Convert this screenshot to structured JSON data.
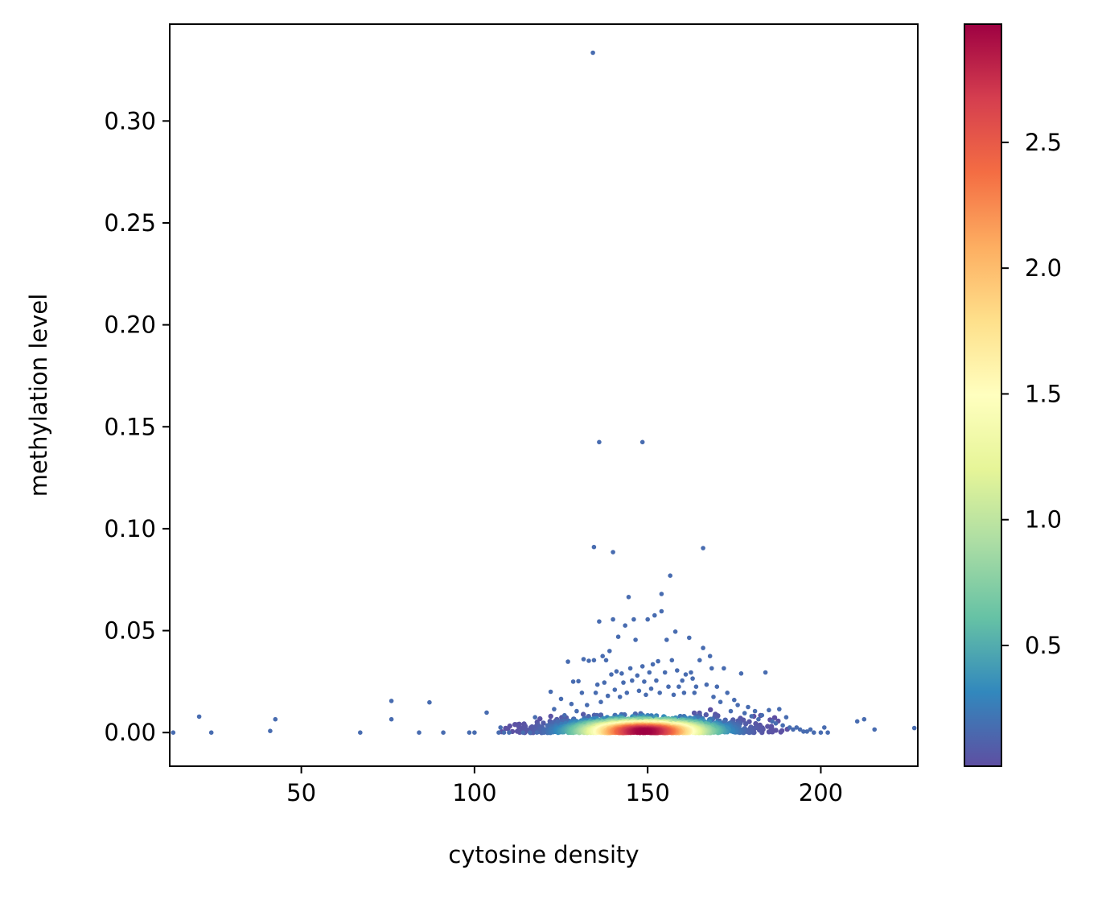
{
  "chart_data": {
    "type": "scatter",
    "title": "",
    "xlabel": "cytosine density",
    "ylabel": "methylation level",
    "xlim": [
      12,
      228
    ],
    "ylim": [
      -0.0165,
      0.3475
    ],
    "xticks": [
      50,
      100,
      150,
      200
    ],
    "xtick_labels": [
      "50",
      "100",
      "150",
      "200"
    ],
    "yticks": [
      0.0,
      0.05,
      0.1,
      0.15,
      0.2,
      0.25,
      0.3
    ],
    "ytick_labels": [
      "0.00",
      "0.05",
      "0.10",
      "0.15",
      "0.20",
      "0.25",
      "0.30"
    ],
    "grid": false,
    "colormap": "Spectral_r",
    "colormap_stops": [
      "#5e4fa2",
      "#3288bd",
      "#66c2a5",
      "#abdda4",
      "#e6f598",
      "#ffffbf",
      "#fee08b",
      "#fdae61",
      "#f46d43",
      "#d53e4f",
      "#9e0142"
    ],
    "colorbar": {
      "range": [
        0.02,
        2.97
      ],
      "ticks": [
        0.5,
        1.0,
        1.5,
        2.0,
        2.5
      ],
      "tick_labels": [
        "0.5",
        "1.0",
        "1.5",
        "2.0",
        "2.5"
      ],
      "placement": "right"
    },
    "density_core": {
      "note_color_value": "density",
      "center": [
        149,
        0.0005
      ],
      "spread": [
        9,
        0.0035
      ]
    },
    "points": [
      [
        13,
        0.0,
        0.05
      ],
      [
        20.5,
        0.0078,
        0.05
      ],
      [
        24,
        0.0,
        0.05
      ],
      [
        41,
        0.0008,
        0.05
      ],
      [
        42.5,
        0.0065,
        0.05
      ],
      [
        67,
        0.0,
        0.05
      ],
      [
        76,
        0.0155,
        0.05
      ],
      [
        76,
        0.0065,
        0.05
      ],
      [
        84,
        0.0,
        0.05
      ],
      [
        87,
        0.0148,
        0.05
      ],
      [
        91,
        0.0,
        0.05
      ],
      [
        98.5,
        0.0,
        0.05
      ],
      [
        100,
        0.0,
        0.05
      ],
      [
        103.5,
        0.0098,
        0.05
      ],
      [
        107,
        0.0,
        0.05
      ],
      [
        107.5,
        0.0025,
        0.05
      ],
      [
        108.5,
        0.0,
        0.05
      ],
      [
        110,
        0.0,
        0.05
      ],
      [
        114,
        0.0,
        0.05
      ],
      [
        116,
        0.0,
        0.05
      ],
      [
        117.5,
        0.0075,
        0.05
      ],
      [
        118,
        0.0,
        0.05
      ],
      [
        120,
        0.0,
        0.05
      ],
      [
        121,
        0.0035,
        0.05
      ],
      [
        122,
        0.02,
        0.05
      ],
      [
        123,
        0.0115,
        0.05
      ],
      [
        124,
        0.0055,
        0.05
      ],
      [
        125,
        0.0165,
        0.05
      ],
      [
        126,
        0.0085,
        0.05
      ],
      [
        127,
        0.0348,
        0.05
      ],
      [
        128,
        0.014,
        0.05
      ],
      [
        128.5,
        0.025,
        0.05
      ],
      [
        129.5,
        0.0105,
        0.05
      ],
      [
        130,
        0.0252,
        0.05
      ],
      [
        131,
        0.0195,
        0.05
      ],
      [
        131.5,
        0.036,
        0.05
      ],
      [
        132.5,
        0.0135,
        0.05
      ],
      [
        133,
        0.0352,
        0.05
      ],
      [
        134.2,
        0.3335,
        0.05
      ],
      [
        134.5,
        0.091,
        0.05
      ],
      [
        134.5,
        0.0355,
        0.05
      ],
      [
        135,
        0.0195,
        0.05
      ],
      [
        135.5,
        0.0235,
        0.05
      ],
      [
        136,
        0.1425,
        0.05
      ],
      [
        136,
        0.0545,
        0.05
      ],
      [
        136.5,
        0.015,
        0.05
      ],
      [
        137,
        0.0375,
        0.05
      ],
      [
        137.5,
        0.0245,
        0.05
      ],
      [
        138,
        0.0355,
        0.05
      ],
      [
        138.5,
        0.018,
        0.05
      ],
      [
        139,
        0.04,
        0.05
      ],
      [
        139.5,
        0.0285,
        0.05
      ],
      [
        140,
        0.0885,
        0.05
      ],
      [
        140,
        0.0555,
        0.05
      ],
      [
        140.5,
        0.021,
        0.05
      ],
      [
        141,
        0.03,
        0.05
      ],
      [
        141.5,
        0.047,
        0.05
      ],
      [
        142,
        0.0175,
        0.05
      ],
      [
        142.5,
        0.029,
        0.05
      ],
      [
        143,
        0.0245,
        0.05
      ],
      [
        143.5,
        0.0525,
        0.05
      ],
      [
        144,
        0.0195,
        0.05
      ],
      [
        144.5,
        0.0665,
        0.05
      ],
      [
        145,
        0.0315,
        0.05
      ],
      [
        145.5,
        0.0255,
        0.05
      ],
      [
        146,
        0.0555,
        0.05
      ],
      [
        146.5,
        0.0455,
        0.05
      ],
      [
        147,
        0.028,
        0.05
      ],
      [
        147.5,
        0.0205,
        0.05
      ],
      [
        148.5,
        0.1425,
        0.05
      ],
      [
        148.5,
        0.0325,
        0.05
      ],
      [
        149,
        0.025,
        0.05
      ],
      [
        149.5,
        0.0185,
        0.05
      ],
      [
        150,
        0.0555,
        0.05
      ],
      [
        150.5,
        0.0295,
        0.05
      ],
      [
        151,
        0.0215,
        0.05
      ],
      [
        151.5,
        0.0335,
        0.05
      ],
      [
        152,
        0.0575,
        0.05
      ],
      [
        152.5,
        0.0255,
        0.05
      ],
      [
        153,
        0.035,
        0.05
      ],
      [
        153.5,
        0.0195,
        0.05
      ],
      [
        154,
        0.068,
        0.05
      ],
      [
        154,
        0.0595,
        0.05
      ],
      [
        155,
        0.0295,
        0.05
      ],
      [
        155.5,
        0.0455,
        0.05
      ],
      [
        156,
        0.0225,
        0.05
      ],
      [
        156.5,
        0.077,
        0.05
      ],
      [
        157,
        0.0355,
        0.05
      ],
      [
        157.5,
        0.0185,
        0.05
      ],
      [
        158,
        0.0495,
        0.05
      ],
      [
        158.5,
        0.0305,
        0.05
      ],
      [
        159,
        0.0225,
        0.05
      ],
      [
        160,
        0.0255,
        0.05
      ],
      [
        160.5,
        0.0195,
        0.05
      ],
      [
        161,
        0.0285,
        0.05
      ],
      [
        162,
        0.0465,
        0.05
      ],
      [
        162.5,
        0.0295,
        0.05
      ],
      [
        163,
        0.0265,
        0.05
      ],
      [
        163.5,
        0.0195,
        0.05
      ],
      [
        164,
        0.0225,
        0.05
      ],
      [
        165,
        0.0355,
        0.05
      ],
      [
        166,
        0.0905,
        0.05
      ],
      [
        166,
        0.0415,
        0.05
      ],
      [
        167,
        0.0235,
        0.05
      ],
      [
        168,
        0.0375,
        0.05
      ],
      [
        168.5,
        0.0315,
        0.05
      ],
      [
        169,
        0.0175,
        0.05
      ],
      [
        170,
        0.0225,
        0.05
      ],
      [
        171,
        0.015,
        0.05
      ],
      [
        172,
        0.0315,
        0.05
      ],
      [
        173,
        0.0195,
        0.05
      ],
      [
        174,
        0.0105,
        0.05
      ],
      [
        175,
        0.016,
        0.05
      ],
      [
        176,
        0.0135,
        0.05
      ],
      [
        177,
        0.029,
        0.05
      ],
      [
        178,
        0.0095,
        0.05
      ],
      [
        179,
        0.0125,
        0.05
      ],
      [
        180,
        0.008,
        0.05
      ],
      [
        181,
        0.0105,
        0.05
      ],
      [
        182,
        0.0065,
        0.05
      ],
      [
        183,
        0.0085,
        0.05
      ],
      [
        184,
        0.0295,
        0.05
      ],
      [
        185,
        0.011,
        0.05
      ],
      [
        186,
        0.0055,
        0.05
      ],
      [
        187,
        0.0045,
        0.05
      ],
      [
        188,
        0.0115,
        0.05
      ],
      [
        189,
        0.0035,
        0.05
      ],
      [
        190,
        0.0075,
        0.05
      ],
      [
        191,
        0.0025,
        0.05
      ],
      [
        192,
        0.0015,
        0.05
      ],
      [
        193,
        0.0025,
        0.05
      ],
      [
        194,
        0.0015,
        0.05
      ],
      [
        195,
        0.0005,
        0.05
      ],
      [
        196,
        0.0005,
        0.05
      ],
      [
        197,
        0.0015,
        0.05
      ],
      [
        198,
        0.0,
        0.05
      ],
      [
        200,
        0.0,
        0.05
      ],
      [
        201,
        0.0025,
        0.05
      ],
      [
        202,
        0.0,
        0.05
      ],
      [
        210.5,
        0.0055,
        0.05
      ],
      [
        212.5,
        0.0065,
        0.05
      ],
      [
        215.5,
        0.0015,
        0.05
      ],
      [
        227,
        0.0022,
        0.05
      ]
    ]
  }
}
